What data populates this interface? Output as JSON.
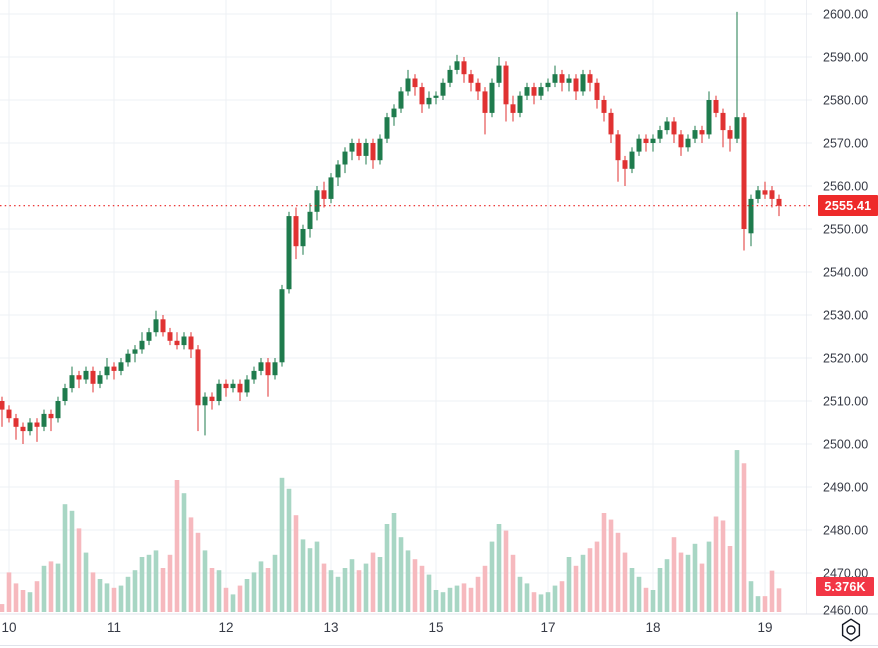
{
  "window": {
    "title": "candlestick price chart with volume"
  },
  "colors": {
    "background": "#ffffff",
    "grid": "#eef0f4",
    "axis_text": "#363a45",
    "axis_border": "#e0e3eb",
    "candle_up": "#1f7b4d",
    "candle_down": "#e03232",
    "volume_up": "#a8d6c4",
    "volume_down": "#f6b9be",
    "price_line": "#ea1f1f",
    "price_label_bg": "#ee2a2a",
    "volume_label_bg": "#f23645",
    "icon": "#131722"
  },
  "price_line": {
    "value": 2555.41,
    "label": "2555.41"
  },
  "volume_label": {
    "value_text": "5.376K",
    "text": "5.376K"
  },
  "settings_button": {
    "icon": "gear-icon"
  },
  "y_axis": {
    "side": "right",
    "labels": [
      {
        "value": 2600,
        "text": "2600.00"
      },
      {
        "value": 2590,
        "text": "2590.00"
      },
      {
        "value": 2580,
        "text": "2580.00"
      },
      {
        "value": 2570,
        "text": "2570.00"
      },
      {
        "value": 2560,
        "text": "2560.00"
      },
      {
        "value": 2550,
        "text": "2550.00"
      },
      {
        "value": 2540,
        "text": "2540.00"
      },
      {
        "value": 2530,
        "text": "2530.00"
      },
      {
        "value": 2520,
        "text": "2520.00"
      },
      {
        "value": 2510,
        "text": "2510.00"
      },
      {
        "value": 2500,
        "text": "2500.00"
      },
      {
        "value": 2490,
        "text": "2490.00"
      },
      {
        "value": 2480,
        "text": "2480.00"
      },
      {
        "value": 2470,
        "text": "2470.00"
      },
      {
        "value": 2460,
        "text": "2460.00"
      }
    ]
  },
  "x_axis": {
    "labels_are": "day of month",
    "ticks": [
      {
        "index": 1,
        "text": "10"
      },
      {
        "index": 16,
        "text": "11"
      },
      {
        "index": 32,
        "text": "12"
      },
      {
        "index": 47,
        "text": "13"
      },
      {
        "index": 62,
        "text": "15"
      },
      {
        "index": 78,
        "text": "17"
      },
      {
        "index": 93,
        "text": "18"
      },
      {
        "index": 109,
        "text": "19"
      }
    ]
  },
  "chart_data": {
    "type": "candlestick",
    "title": "",
    "panes": [
      "price",
      "volume"
    ],
    "y_range_visible": [
      2458,
      2602
    ],
    "last_price": 2555.41,
    "last_volume_k": 5.376,
    "volume_unit": "K",
    "candles_format": [
      "open",
      "high",
      "low",
      "close",
      "volume_k"
    ],
    "candles": [
      [
        2510,
        2511,
        2504,
        2508,
        1.8
      ],
      [
        2508,
        2509,
        2505,
        2506,
        9
      ],
      [
        2506,
        2507,
        2501,
        2504,
        6.5
      ],
      [
        2504,
        2505,
        2500,
        2503,
        5
      ],
      [
        2503,
        2506,
        2502,
        2505,
        4.5
      ],
      [
        2505,
        2506,
        2500.5,
        2504,
        7
      ],
      [
        2504,
        2508,
        2503,
        2507,
        10.5
      ],
      [
        2507,
        2508,
        2503,
        2506,
        11.5
      ],
      [
        2506,
        2511,
        2505,
        2510,
        11
      ],
      [
        2510,
        2514,
        2509,
        2513,
        24.5
      ],
      [
        2513,
        2518,
        2512,
        2516,
        23
      ],
      [
        2516,
        2517,
        2513,
        2515,
        19
      ],
      [
        2515,
        2518,
        2514,
        2517,
        13.5
      ],
      [
        2517,
        2518,
        2512,
        2514,
        9
      ],
      [
        2514,
        2517,
        2513,
        2516,
        7.5
      ],
      [
        2516,
        2520,
        2515,
        2518,
        6.5
      ],
      [
        2518,
        2519,
        2515,
        2517,
        5.5
      ],
      [
        2517,
        2520,
        2516,
        2519,
        6
      ],
      [
        2519,
        2522,
        2518,
        2521,
        8
      ],
      [
        2521,
        2523,
        2519,
        2522,
        9.5
      ],
      [
        2522,
        2526,
        2521,
        2524,
        12.5
      ],
      [
        2524,
        2527,
        2523,
        2526,
        13
      ],
      [
        2526,
        2531,
        2525,
        2529,
        14
      ],
      [
        2529,
        2530,
        2525,
        2526,
        10
      ],
      [
        2526,
        2527,
        2523,
        2524,
        13
      ],
      [
        2524,
        2526,
        2522,
        2523,
        30
      ],
      [
        2523,
        2526,
        2522,
        2525,
        27
      ],
      [
        2525,
        2526,
        2520,
        2522,
        21.5
      ],
      [
        2522,
        2523,
        2503,
        2509,
        18
      ],
      [
        2509,
        2512,
        2502,
        2511,
        14
      ],
      [
        2511,
        2512,
        2508,
        2510,
        10
      ],
      [
        2510,
        2515,
        2509,
        2514,
        9.5
      ],
      [
        2514,
        2515,
        2511,
        2513,
        5.5
      ],
      [
        2513,
        2515,
        2512,
        2514,
        4
      ],
      [
        2514,
        2515,
        2510,
        2512,
        6
      ],
      [
        2512,
        2516,
        2511,
        2515,
        7.5
      ],
      [
        2515,
        2518,
        2514,
        2517,
        9
      ],
      [
        2517,
        2520,
        2516,
        2519,
        11.5
      ],
      [
        2519,
        2520,
        2511,
        2516,
        10
      ],
      [
        2516,
        2520,
        2515,
        2519,
        13
      ],
      [
        2519,
        2537,
        2518,
        2536,
        30.5
      ],
      [
        2536,
        2554,
        2535,
        2553,
        28
      ],
      [
        2553,
        2555,
        2543,
        2546,
        22
      ],
      [
        2546,
        2551,
        2544,
        2550,
        16.5
      ],
      [
        2550,
        2556,
        2548,
        2554,
        14.5
      ],
      [
        2554,
        2560,
        2552,
        2559,
        16
      ],
      [
        2559,
        2561,
        2555,
        2557,
        11
      ],
      [
        2557,
        2563,
        2556,
        2562,
        9.5
      ],
      [
        2562,
        2566,
        2560,
        2565,
        8
      ],
      [
        2565,
        2569,
        2563,
        2568,
        10
      ],
      [
        2568,
        2571,
        2566,
        2570,
        12
      ],
      [
        2570,
        2571,
        2566,
        2567,
        9.5
      ],
      [
        2567,
        2571,
        2565,
        2570,
        11
      ],
      [
        2570,
        2571,
        2564,
        2566,
        13.5
      ],
      [
        2566,
        2572,
        2565,
        2571,
        12.5
      ],
      [
        2571,
        2577,
        2570,
        2576,
        20
      ],
      [
        2576,
        2579,
        2574,
        2578,
        22.5
      ],
      [
        2578,
        2583,
        2577,
        2582,
        17
      ],
      [
        2582,
        2587,
        2581,
        2585,
        14
      ],
      [
        2585,
        2586,
        2581,
        2583,
        12
      ],
      [
        2583,
        2584,
        2577,
        2579,
        10.5
      ],
      [
        2579,
        2582,
        2578,
        2580.5,
        8.5
      ],
      [
        2580.5,
        2582,
        2579,
        2581,
        5
      ],
      [
        2581,
        2585,
        2580,
        2584,
        4.5
      ],
      [
        2584,
        2588,
        2583,
        2587,
        5.5
      ],
      [
        2587,
        2590.5,
        2586,
        2589,
        6
      ],
      [
        2589,
        2590,
        2584,
        2586,
        6.5
      ],
      [
        2586,
        2587,
        2582,
        2584,
        5.5
      ],
      [
        2584,
        2585,
        2580,
        2582,
        8
      ],
      [
        2582,
        2583,
        2572,
        2577,
        10.5
      ],
      [
        2577,
        2585,
        2576,
        2584,
        16
      ],
      [
        2584,
        2590,
        2583,
        2588,
        20
      ],
      [
        2588,
        2589,
        2575,
        2579,
        18.5
      ],
      [
        2579,
        2581,
        2575,
        2577,
        13
      ],
      [
        2577,
        2582,
        2576,
        2581,
        8
      ],
      [
        2581,
        2584,
        2580,
        2583,
        6.5
      ],
      [
        2583,
        2584,
        2579,
        2581,
        4.5
      ],
      [
        2581,
        2584,
        2580,
        2583,
        4
      ],
      [
        2583,
        2585,
        2582,
        2584,
        4.5
      ],
      [
        2584,
        2588,
        2583,
        2586,
        6
      ],
      [
        2586,
        2587,
        2582,
        2584,
        7
      ],
      [
        2584,
        2586,
        2582,
        2585,
        12.5
      ],
      [
        2585,
        2586,
        2580,
        2582,
        10.5
      ],
      [
        2582,
        2587,
        2581,
        2586,
        13
      ],
      [
        2586,
        2587,
        2582,
        2584,
        14.5
      ],
      [
        2584,
        2585,
        2578,
        2580,
        16
      ],
      [
        2580,
        2581,
        2575,
        2577,
        22.5
      ],
      [
        2577,
        2578,
        2570,
        2572,
        21
      ],
      [
        2572,
        2573,
        2561,
        2566,
        18
      ],
      [
        2566,
        2567,
        2560,
        2564,
        13.5
      ],
      [
        2564,
        2569,
        2563,
        2568,
        10
      ],
      [
        2568,
        2572,
        2567,
        2571,
        8
      ],
      [
        2571,
        2572,
        2568,
        2570,
        5.5
      ],
      [
        2570,
        2572,
        2568,
        2571,
        5
      ],
      [
        2571,
        2574,
        2570,
        2573,
        10
      ],
      [
        2573,
        2576,
        2572,
        2575,
        12
      ],
      [
        2575,
        2576,
        2570,
        2572,
        17
      ],
      [
        2572,
        2573,
        2567,
        2569,
        13.5
      ],
      [
        2569,
        2572,
        2568,
        2571,
        13
      ],
      [
        2571,
        2574,
        2570,
        2573,
        15.5
      ],
      [
        2573,
        2574,
        2570,
        2572,
        11
      ],
      [
        2572,
        2582,
        2571,
        2580,
        16
      ],
      [
        2580,
        2581,
        2576,
        2577,
        21.7
      ],
      [
        2577,
        2578,
        2569,
        2573,
        20.8
      ],
      [
        2573,
        2574,
        2568,
        2571,
        15
      ],
      [
        2571,
        2600.5,
        2570,
        2576,
        36.8
      ],
      [
        2576,
        2577,
        2545,
        2550,
        33.8
      ],
      [
        2549,
        2558,
        2546,
        2557,
        7
      ],
      [
        2557,
        2560,
        2556,
        2559,
        3.6
      ],
      [
        2559,
        2561,
        2557,
        2558,
        3.6
      ],
      [
        2559,
        2560,
        2555,
        2557,
        9.4
      ],
      [
        2557,
        2558,
        2553,
        2555.41,
        5.376
      ]
    ]
  }
}
